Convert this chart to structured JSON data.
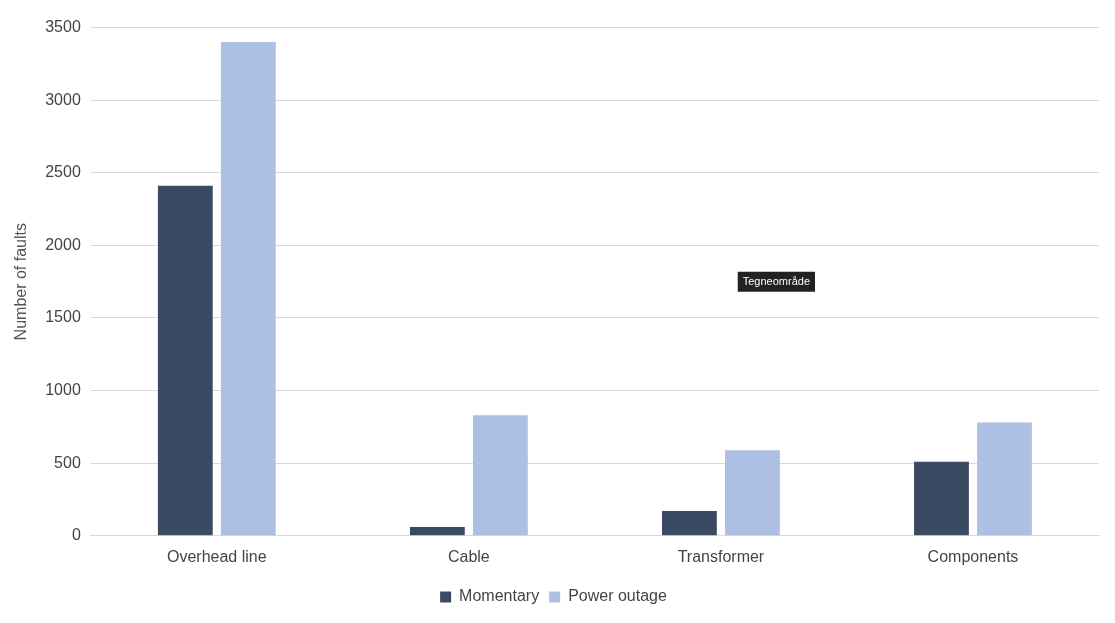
{
  "chart_data": {
    "type": "bar",
    "ylabel": "Number of faults",
    "categories": [
      "Overhead line",
      "Cable",
      "Transformer",
      "Components"
    ],
    "series": [
      {
        "name": "Momentary",
        "color": "#3b4a63",
        "values": [
          2410,
          60,
          170,
          510
        ]
      },
      {
        "name": "Power outage",
        "color": "#adc0e3",
        "values": [
          3400,
          830,
          590,
          780
        ]
      }
    ],
    "ylim": [
      0,
      3500
    ],
    "yticks": [
      0,
      500,
      1000,
      1500,
      2000,
      2500,
      3000,
      3500
    ],
    "grid": "y",
    "legend": "bottom",
    "annotations": [
      "Tegneområde"
    ]
  }
}
